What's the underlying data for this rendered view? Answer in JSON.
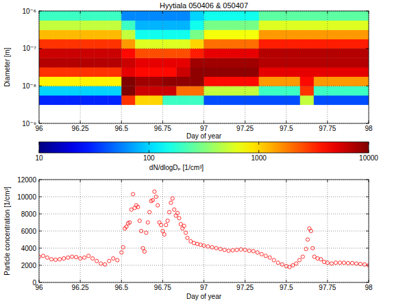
{
  "chart_data": [
    {
      "type": "heatmap",
      "title": "Hyytiala 050406 & 050407",
      "x_label": "Day of year",
      "y_label": "Diameter [m]",
      "log": "y",
      "grid": true,
      "xlim": [
        96,
        98
      ],
      "xticks": [
        96,
        96.25,
        96.5,
        96.75,
        97,
        97.25,
        97.5,
        97.75,
        98
      ],
      "ylim": [
        1e-09,
        1e-06
      ],
      "yticks": [
        {
          "value": 1e-09,
          "label": "10⁻⁹"
        },
        {
          "value": 1e-08,
          "label": "10⁻⁸"
        },
        {
          "value": 1e-07,
          "label": "10⁻⁷"
        },
        {
          "value": 1e-06,
          "label": "10⁻⁶"
        }
      ],
      "x_bins": [
        96,
        96.0833,
        96.1667,
        96.25,
        96.3333,
        96.4167,
        96.5,
        96.5833,
        96.6667,
        96.75,
        96.8333,
        96.9167,
        97,
        97.0833,
        97.1667,
        97.25,
        97.3333,
        97.4167,
        97.5,
        97.5833,
        97.6667,
        97.75,
        97.8333,
        97.9167,
        98
      ],
      "y_bins": [
        3.16e-09,
        5.62e-09,
        1e-08,
        1.78e-08,
        3.16e-08,
        5.62e-08,
        1e-07,
        1.78e-07,
        3.16e-07,
        5.62e-07,
        1e-06
      ],
      "cells": [
        [
          30,
          30,
          30,
          30,
          30,
          30,
          3000,
          1000,
          1000,
          200,
          200,
          200,
          40,
          40,
          40,
          40,
          40,
          40,
          40,
          500,
          40,
          40,
          40,
          40
        ],
        [
          100,
          100,
          100,
          100,
          100,
          100,
          10000,
          6000,
          6000,
          6000,
          2000,
          2000,
          500,
          500,
          500,
          500,
          200,
          200,
          200,
          3000,
          200,
          200,
          200,
          200
        ],
        [
          800,
          800,
          800,
          800,
          800,
          800,
          10000,
          8000,
          8000,
          9000,
          9000,
          9000,
          4000,
          4000,
          4000,
          4000,
          1500,
          1500,
          1500,
          4000,
          1500,
          1500,
          1500,
          1500
        ],
        [
          3000,
          3000,
          3000,
          3000,
          3000,
          3000,
          5000,
          4000,
          4000,
          4000,
          6000,
          9000,
          9000,
          9000,
          9000,
          9000,
          5000,
          5000,
          5000,
          5000,
          5000,
          5000,
          5000,
          5000
        ],
        [
          7000,
          7000,
          7000,
          7000,
          7000,
          7000,
          6000,
          5000,
          5000,
          5000,
          5000,
          8000,
          8000,
          8000,
          8000,
          8000,
          7000,
          7000,
          7000,
          7000,
          7000,
          7000,
          7000,
          7000
        ],
        [
          6000,
          6000,
          6000,
          6000,
          6000,
          6000,
          4000,
          2500,
          2500,
          2500,
          2500,
          3500,
          5000,
          5000,
          5000,
          5000,
          7000,
          7000,
          7000,
          7000,
          7000,
          7000,
          7000,
          7000
        ],
        [
          3000,
          3000,
          3000,
          3000,
          3000,
          3000,
          1500,
          600,
          600,
          600,
          600,
          1000,
          2000,
          2000,
          2000,
          2000,
          3500,
          3500,
          3500,
          3500,
          3500,
          3500,
          3500,
          3500
        ],
        [
          1200,
          1200,
          1200,
          1200,
          1200,
          1200,
          500,
          150,
          150,
          150,
          150,
          300,
          700,
          700,
          700,
          700,
          1500,
          1500,
          1500,
          1500,
          1500,
          1500,
          1500,
          1500
        ],
        [
          500,
          500,
          500,
          500,
          500,
          500,
          200,
          80,
          80,
          80,
          80,
          150,
          300,
          300,
          300,
          300,
          600,
          600,
          600,
          600,
          600,
          600,
          600,
          600
        ],
        [
          200,
          200,
          200,
          200,
          200,
          200,
          60,
          60,
          60,
          60,
          60,
          100,
          150,
          150,
          150,
          150,
          250,
          250,
          250,
          250,
          250,
          250,
          250,
          250
        ]
      ],
      "colorbar": {
        "label": "dN/dlogDₚ [1/cm³]",
        "range": [
          10,
          10000
        ],
        "ticks": [
          10,
          100,
          1000,
          10000
        ],
        "log": true
      }
    },
    {
      "type": "scatter",
      "x_label": "Day of year",
      "y_label": "Particle concentration [1/cm³]",
      "color": "#ff0000",
      "marker": "circle",
      "grid": true,
      "xlim": [
        96,
        98
      ],
      "xticks": [
        96,
        96.25,
        96.5,
        96.75,
        97,
        97.25,
        97.5,
        97.75,
        98
      ],
      "ylim": [
        0,
        12000
      ],
      "yticks": [
        0,
        2000,
        4000,
        6000,
        8000,
        10000,
        12000
      ],
      "x": [
        96.0,
        96.025,
        96.05,
        96.075,
        96.1,
        96.125,
        96.15,
        96.175,
        96.2,
        96.225,
        96.25,
        96.275,
        96.3,
        96.325,
        96.35,
        96.375,
        96.4,
        96.425,
        96.45,
        96.475,
        96.5,
        96.51,
        96.52,
        96.53,
        96.54,
        96.55,
        96.56,
        96.57,
        96.58,
        96.59,
        96.6,
        96.61,
        96.62,
        96.63,
        96.64,
        96.65,
        96.66,
        96.67,
        96.68,
        96.69,
        96.7,
        96.71,
        96.72,
        96.73,
        96.74,
        96.75,
        96.76,
        96.77,
        96.78,
        96.79,
        96.8,
        96.81,
        96.82,
        96.83,
        96.84,
        96.85,
        96.86,
        96.87,
        96.88,
        96.89,
        96.9,
        96.92,
        96.94,
        96.96,
        96.98,
        97.0,
        97.025,
        97.05,
        97.075,
        97.1,
        97.125,
        97.15,
        97.175,
        97.2,
        97.225,
        97.25,
        97.275,
        97.3,
        97.325,
        97.35,
        97.375,
        97.4,
        97.425,
        97.45,
        97.475,
        97.5,
        97.52,
        97.54,
        97.56,
        97.58,
        97.6,
        97.62,
        97.63,
        97.64,
        97.65,
        97.66,
        97.67,
        97.69,
        97.71,
        97.73,
        97.75,
        97.775,
        97.8,
        97.825,
        97.85,
        97.875,
        97.9,
        97.925,
        97.95,
        97.975,
        98.0
      ],
      "values": [
        3000,
        3100,
        2900,
        2700,
        2650,
        2700,
        2800,
        2900,
        3000,
        2950,
        2800,
        2900,
        3100,
        2800,
        2500,
        2200,
        2100,
        2500,
        2800,
        2600,
        3500,
        4100,
        6300,
        6500,
        6900,
        7000,
        8500,
        10300,
        8700,
        9000,
        8800,
        7200,
        6000,
        4000,
        3600,
        5800,
        7000,
        8200,
        9500,
        9600,
        10600,
        10000,
        9000,
        7000,
        6700,
        6000,
        5600,
        6700,
        7200,
        8200,
        9300,
        9800,
        8500,
        7800,
        8100,
        7500,
        6800,
        6300,
        6600,
        5800,
        5200,
        4800,
        4600,
        4500,
        4400,
        4300,
        4200,
        4100,
        4000,
        3900,
        3800,
        3700,
        3750,
        3800,
        3850,
        3800,
        3700,
        3650,
        3500,
        3300,
        3100,
        2900,
        2600,
        2300,
        2100,
        1900,
        1800,
        2000,
        2200,
        2600,
        3000,
        3900,
        5000,
        6300,
        6000,
        4000,
        3000,
        2800,
        2700,
        2400,
        2300,
        2200,
        2300,
        2300,
        2300,
        2250,
        2250,
        2200,
        2150,
        2100,
        2000
      ]
    }
  ]
}
